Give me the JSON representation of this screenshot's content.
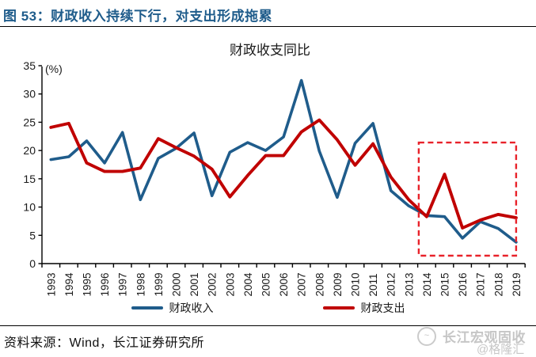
{
  "header": {
    "title": "图 53：财政收入持续下行，对支出形成拖累"
  },
  "chart_data": {
    "type": "line",
    "title": "财政收支同比",
    "unit": "(%)",
    "categories": [
      "1993",
      "1994",
      "1995",
      "1996",
      "1997",
      "1998",
      "1999",
      "2000",
      "2001",
      "2002",
      "2003",
      "2004",
      "2005",
      "2006",
      "2007",
      "2008",
      "2009",
      "2010",
      "2011",
      "2012",
      "2013",
      "2014",
      "2015",
      "2016",
      "2017",
      "2018",
      "2019"
    ],
    "series": [
      {
        "name": "财政收入",
        "color": "#1f5c8b",
        "values": [
          18.4,
          18.9,
          21.7,
          17.8,
          23.2,
          11.3,
          18.6,
          20.4,
          23.1,
          12.0,
          19.7,
          21.4,
          20.0,
          22.4,
          32.4,
          19.9,
          11.7,
          21.3,
          24.8,
          12.9,
          10.2,
          8.5,
          8.3,
          4.5,
          7.4,
          6.2,
          3.8
        ]
      },
      {
        "name": "财政支出",
        "color": "#c00000",
        "values": [
          24.1,
          24.8,
          17.8,
          16.3,
          16.3,
          16.9,
          22.1,
          20.5,
          19.0,
          16.7,
          11.8,
          15.6,
          19.1,
          19.1,
          23.3,
          25.4,
          21.9,
          17.4,
          21.2,
          15.3,
          11.3,
          8.3,
          15.8,
          6.3,
          7.7,
          8.7,
          8.1
        ]
      }
    ],
    "ylim": [
      0,
      35
    ],
    "y_step": 5,
    "grid": false,
    "legend_position": "bottom",
    "highlight_box": {
      "from_year": "2014",
      "to_year": "2019",
      "value_top": 21.4,
      "value_bottom": 1.4,
      "color": "#e8222a"
    }
  },
  "footer": {
    "source": "资料来源：Wind，长江证券研究所"
  },
  "watermark": {
    "line1": "长江宏观固收",
    "line2": "@格隆汇"
  }
}
